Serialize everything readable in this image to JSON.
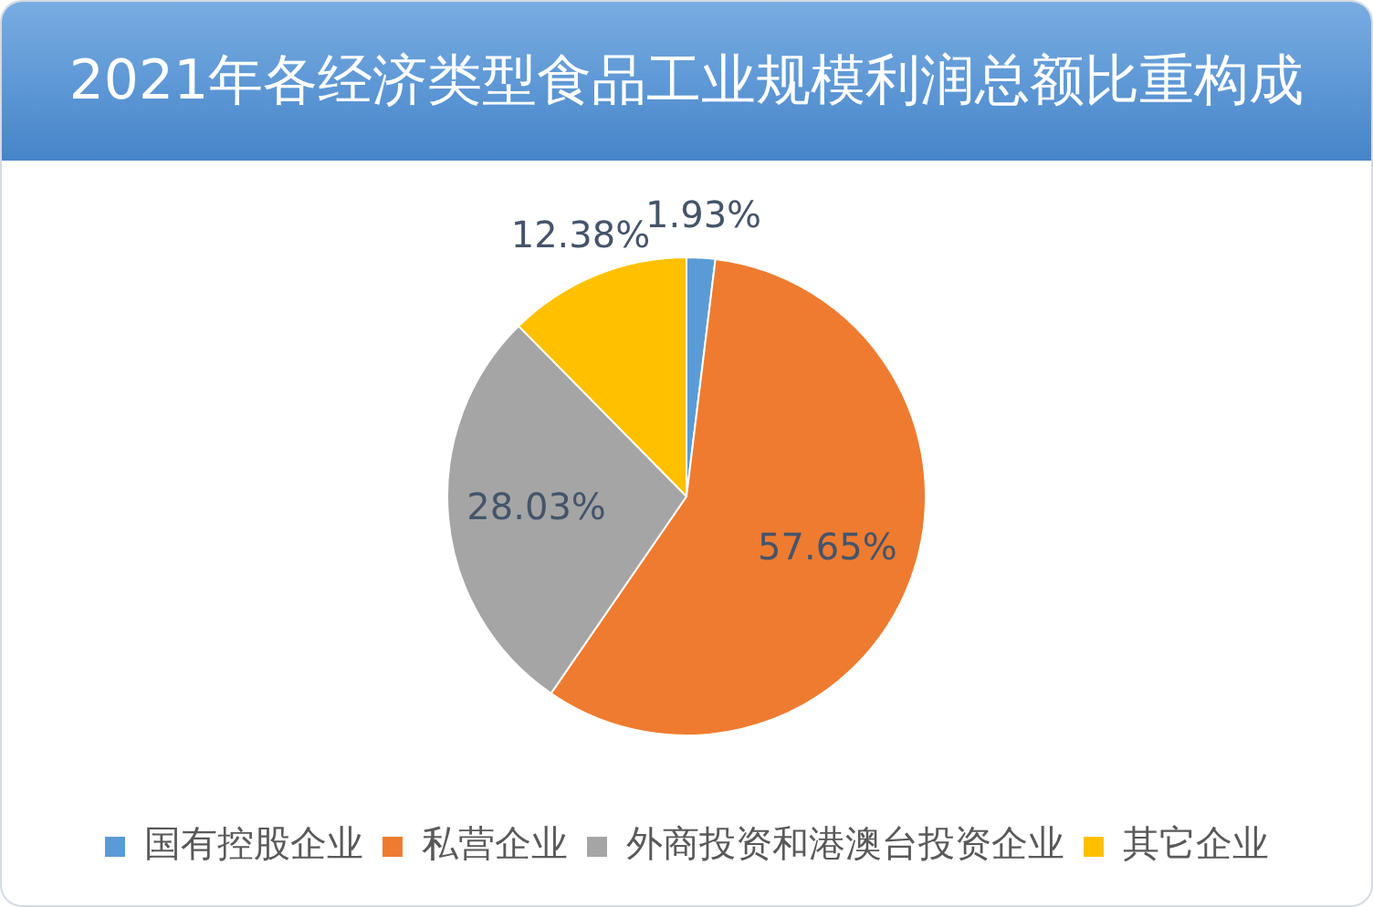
{
  "chart_data": {
    "type": "pie",
    "title": "2021年各经济类型食品工业规模利润总额比重构成",
    "categories": [
      "国有控股企业",
      "私营企业",
      "外商投资和港澳台投资企业",
      "其它企业"
    ],
    "values": [
      1.93,
      57.65,
      28.03,
      12.38
    ],
    "colors": [
      "#5b9bd5",
      "#ee7b30",
      "#a5a5a5",
      "#ffc000"
    ],
    "value_labels": [
      "1.93%",
      "57.65%",
      "28.03%",
      "12.38%"
    ],
    "legend": "bottom"
  }
}
